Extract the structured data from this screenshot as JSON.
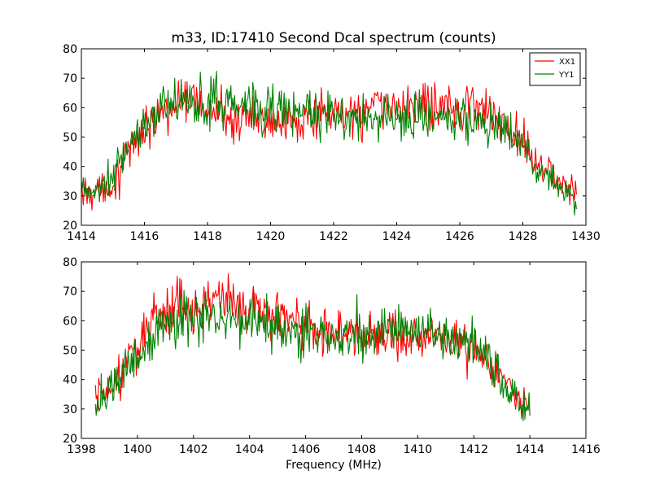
{
  "figure": {
    "title": "m33, ID:17410 Second Dcal spectrum (counts)",
    "xlabel": "Frequency (MHz)"
  },
  "chart_data": [
    {
      "type": "line",
      "xlim": [
        1414,
        1430
      ],
      "ylim": [
        20,
        80
      ],
      "xticks": [
        "1414",
        "1416",
        "1418",
        "1420",
        "1422",
        "1424",
        "1426",
        "1428",
        "1430"
      ],
      "yticks": [
        "20",
        "30",
        "40",
        "50",
        "60",
        "70",
        "80"
      ],
      "grid": false,
      "legend_position": "top-right",
      "series": [
        {
          "name": "XX1",
          "color": "#ff0000",
          "x": [
            1414.0,
            1414.5,
            1415.0,
            1415.5,
            1416.0,
            1416.5,
            1417.0,
            1417.5,
            1418.0,
            1418.5,
            1419.0,
            1419.5,
            1420.0,
            1420.5,
            1421.0,
            1421.5,
            1422.0,
            1422.5,
            1423.0,
            1423.5,
            1424.0,
            1424.5,
            1425.0,
            1425.5,
            1426.0,
            1426.5,
            1427.0,
            1427.5,
            1428.0,
            1428.5,
            1429.0,
            1429.5,
            1429.7
          ],
          "y": [
            31,
            32,
            34,
            44,
            53,
            58,
            61,
            62,
            60,
            58,
            56,
            55,
            56,
            57,
            57,
            56,
            57,
            58,
            59,
            60,
            60,
            61,
            61,
            61,
            61,
            60,
            58,
            54,
            49,
            42,
            36,
            32,
            31
          ]
        },
        {
          "name": "YY1",
          "color": "#008000",
          "x": [
            1414.0,
            1414.5,
            1415.0,
            1415.5,
            1416.0,
            1416.5,
            1417.0,
            1417.5,
            1418.0,
            1418.5,
            1419.0,
            1419.5,
            1420.0,
            1420.5,
            1421.0,
            1421.5,
            1422.0,
            1422.5,
            1423.0,
            1423.5,
            1424.0,
            1424.5,
            1425.0,
            1425.5,
            1426.0,
            1426.5,
            1427.0,
            1427.5,
            1428.0,
            1428.5,
            1429.0,
            1429.5,
            1429.7
          ],
          "y": [
            31,
            32,
            36,
            47,
            54,
            59,
            61,
            62,
            62,
            62,
            61,
            60,
            59,
            59,
            58,
            58,
            57,
            57,
            56,
            56,
            56,
            57,
            57,
            57,
            56,
            56,
            55,
            52,
            47,
            40,
            34,
            30,
            28
          ]
        }
      ]
    },
    {
      "type": "line",
      "xlim": [
        1398,
        1416
      ],
      "ylim": [
        20,
        80
      ],
      "xticks": [
        "1398",
        "1400",
        "1402",
        "1404",
        "1406",
        "1408",
        "1410",
        "1412",
        "1414",
        "1416"
      ],
      "yticks": [
        "20",
        "30",
        "40",
        "50",
        "60",
        "70",
        "80"
      ],
      "grid": false,
      "series": [
        {
          "color": "#ff0000",
          "x": [
            1398.5,
            1399.0,
            1399.5,
            1400.0,
            1400.5,
            1401.0,
            1401.5,
            1402.0,
            1402.5,
            1403.0,
            1403.5,
            1404.0,
            1404.5,
            1405.0,
            1405.5,
            1406.0,
            1406.5,
            1407.0,
            1407.5,
            1408.0,
            1408.5,
            1409.0,
            1409.5,
            1410.0,
            1410.5,
            1411.0,
            1411.5,
            1412.0,
            1412.5,
            1413.0,
            1413.5,
            1414.0
          ],
          "y": [
            33,
            36,
            43,
            52,
            59,
            63,
            65,
            66,
            67,
            67,
            66,
            65,
            64,
            62,
            60,
            58,
            57,
            56,
            55,
            55,
            54,
            54,
            54,
            54,
            53,
            53,
            52,
            50,
            46,
            40,
            34,
            31
          ]
        },
        {
          "color": "#008000",
          "x": [
            1398.5,
            1399.0,
            1399.5,
            1400.0,
            1400.5,
            1401.0,
            1401.5,
            1402.0,
            1402.5,
            1403.0,
            1403.5,
            1404.0,
            1404.5,
            1405.0,
            1405.5,
            1406.0,
            1406.5,
            1407.0,
            1407.5,
            1408.0,
            1408.5,
            1409.0,
            1409.5,
            1410.0,
            1410.5,
            1411.0,
            1411.5,
            1412.0,
            1412.5,
            1413.0,
            1413.5,
            1414.0
          ],
          "y": [
            32,
            35,
            41,
            48,
            54,
            58,
            60,
            61,
            61,
            61,
            60,
            60,
            59,
            58,
            57,
            56,
            55,
            55,
            55,
            55,
            56,
            56,
            57,
            57,
            57,
            56,
            55,
            52,
            47,
            40,
            34,
            30
          ]
        }
      ]
    }
  ]
}
